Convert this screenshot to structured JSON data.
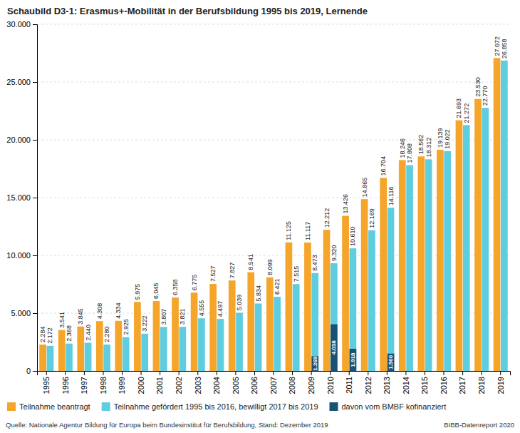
{
  "chart_data": {
    "type": "bar",
    "title": "Schaubild D3-1: Erasmus+-Mobilität in der Berufsbildung 1995 bis 2019, Lernende",
    "annotations": [
      "Quelle: Nationale Agentur Bildung für Europa beim Bundesinstitut für Berufsbildung, Stand: Dezember 2019",
      "BIBB-Datenreport 2020"
    ],
    "categories": [
      "1995",
      "1996",
      "1997",
      "1998",
      "1999",
      "2000",
      "2001",
      "2002",
      "2003",
      "2004",
      "2005",
      "2006",
      "2007",
      "2008",
      "2009",
      "2010",
      "2011",
      "2012",
      "2013",
      "2014",
      "2015",
      "2016",
      "2017",
      "2018",
      "2019"
    ],
    "series": [
      {
        "name": "Teilnahme beantragt",
        "color": "#F5A52A",
        "values": [
          2284,
          3541,
          3845,
          4308,
          4334,
          5975,
          6045,
          6358,
          6775,
          7527,
          7827,
          8541,
          8099,
          11125,
          11117,
          12212,
          13426,
          14865,
          16704,
          18246,
          18562,
          19139,
          21693,
          23530,
          27072
        ],
        "value_labels": [
          "2.284",
          "3.541",
          "3.845",
          "4.308",
          "4.334",
          "5.975",
          "6.045",
          "6.358",
          "6.775",
          "7.527",
          "7.827",
          "8.541",
          "8.099",
          "11.125",
          "11.117",
          "12.212",
          "13.426",
          "14.865",
          "16.704",
          "18.246",
          "18.562",
          "19.139",
          "21.693",
          "23.530",
          "27.072"
        ]
      },
      {
        "name": "Teilnahme gefördert 1995 bis 2016, bewilligt 2017 bis 2019",
        "color": "#5ECDE0",
        "values": [
          2172,
          2368,
          2440,
          2280,
          2925,
          3222,
          3807,
          3821,
          4555,
          4497,
          5039,
          5834,
          6421,
          7515,
          8473,
          9320,
          10610,
          12169,
          14116,
          17808,
          18312,
          19022,
          21272,
          22770,
          26858
        ],
        "value_labels": [
          "2.172",
          "2.368",
          "2.440",
          "2.280",
          "2.925",
          "3.222",
          "3.807",
          "3.821",
          "4.555",
          "4.497",
          "5.039",
          "5.834",
          "6.421",
          "7.515",
          "8.473",
          "9.320",
          "10.610",
          "12.169",
          "14.116",
          "17.808",
          "18.312",
          "19.022",
          "21.272",
          "22.770",
          "26.858"
        ]
      },
      {
        "name": "davon vom BMBF kofinanziert",
        "color": "#1A5276",
        "values": [
          0,
          0,
          0,
          0,
          0,
          0,
          0,
          0,
          0,
          0,
          0,
          0,
          0,
          0,
          1269,
          4038,
          1918,
          0,
          1500,
          0,
          0,
          0,
          0,
          0,
          0
        ],
        "value_labels": [
          null,
          null,
          null,
          null,
          null,
          null,
          null,
          null,
          null,
          null,
          null,
          null,
          null,
          null,
          "1.269",
          "4.038",
          "1.918",
          null,
          "1.500",
          null,
          null,
          null,
          null,
          null,
          null
        ]
      }
    ],
    "ylim": [
      0,
      30000
    ],
    "yticks": [
      0,
      {
        "value": 5000,
        "label": "5.000"
      },
      {
        "value": 10000,
        "label": "10.000"
      },
      {
        "value": 15000,
        "label": "15.000"
      },
      {
        "value": 20000,
        "label": "20.000"
      },
      {
        "value": 25000,
        "label": "25.000"
      },
      {
        "value": 30000,
        "label": "30.000"
      }
    ],
    "grid": true,
    "legend": "bottom",
    "data_labels": true
  }
}
